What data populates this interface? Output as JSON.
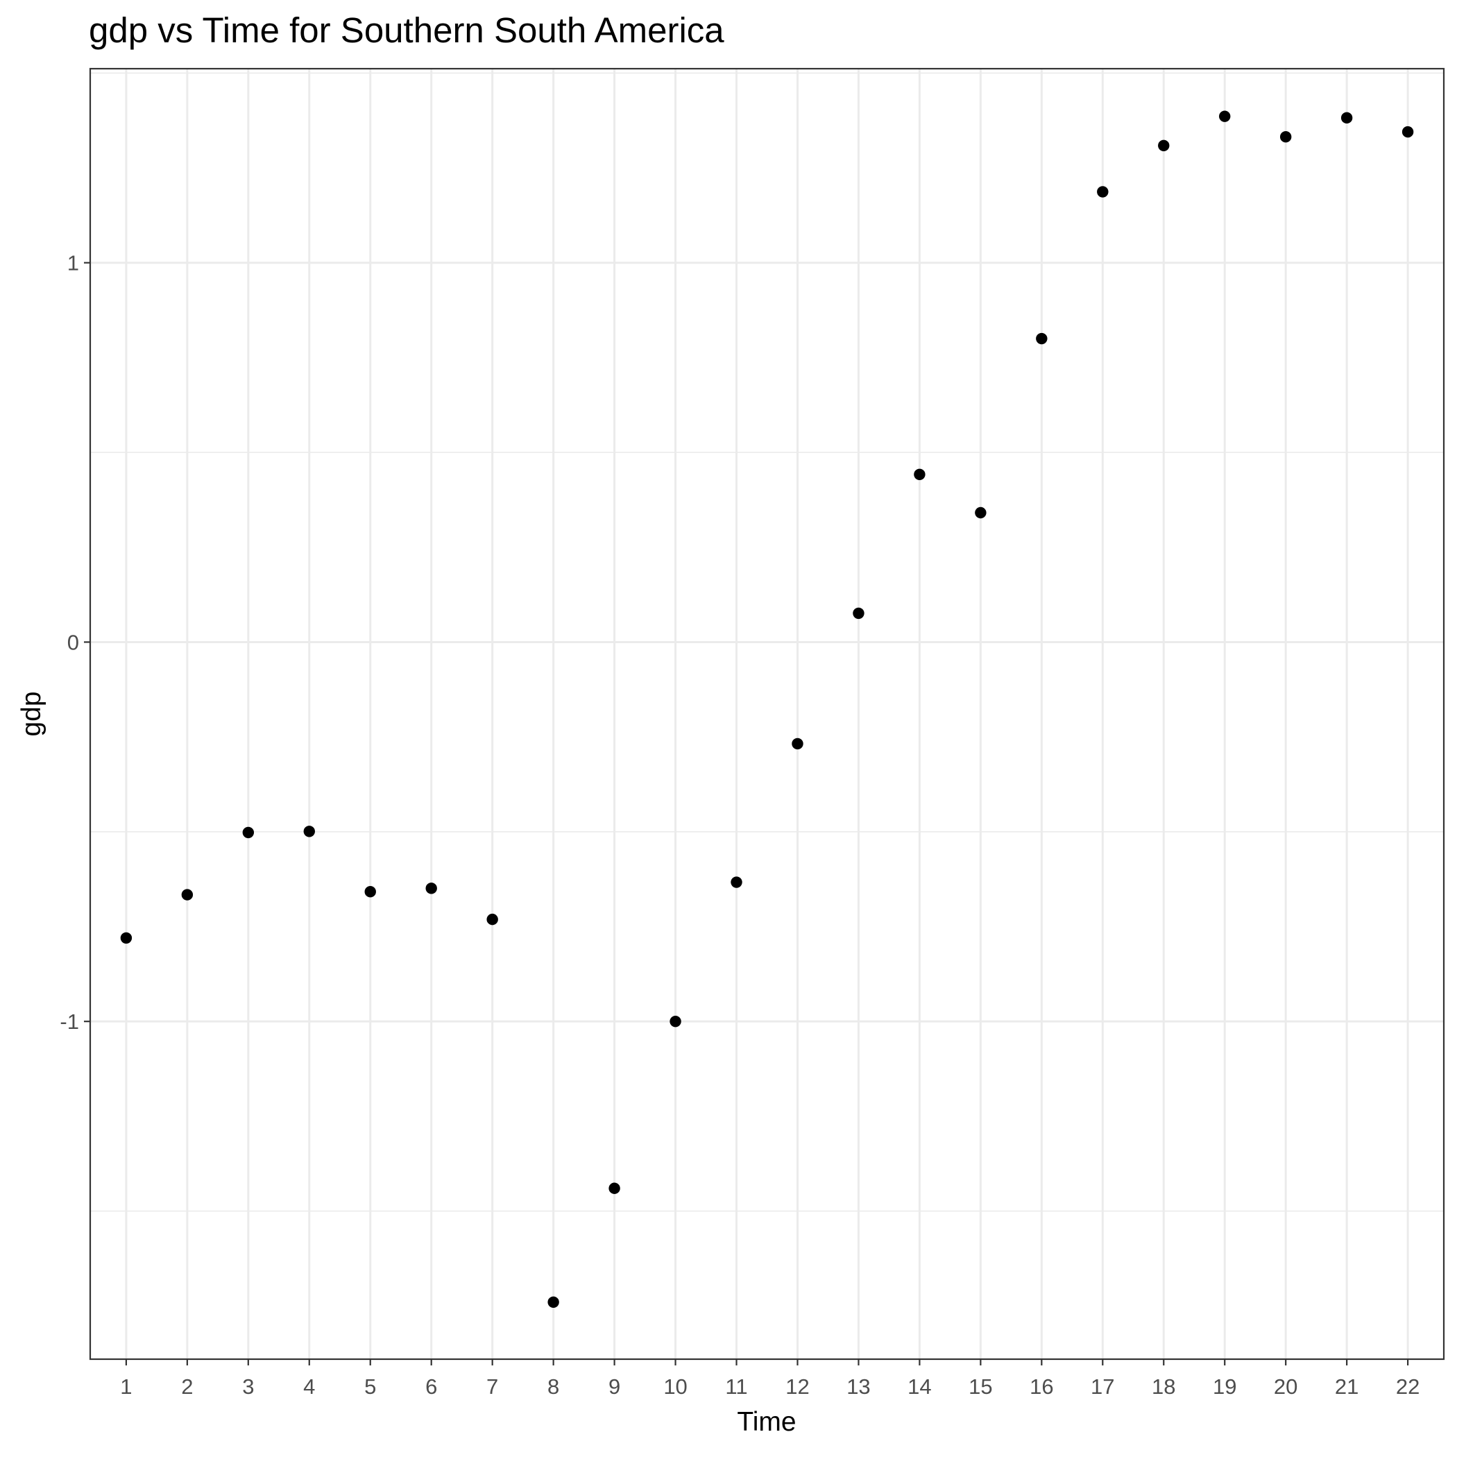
{
  "chart_data": {
    "type": "scatter",
    "title": "gdp  vs Time for Southern South America",
    "xlabel": "Time",
    "ylabel": "gdp",
    "x": [
      1,
      2,
      3,
      4,
      5,
      6,
      7,
      8,
      9,
      10,
      11,
      12,
      13,
      14,
      15,
      16,
      17,
      18,
      19,
      20,
      21,
      22
    ],
    "y": [
      -0.78,
      -0.666,
      -0.502,
      -0.499,
      -0.658,
      -0.649,
      -0.731,
      -1.74,
      -1.44,
      -1.0,
      -0.633,
      -0.268,
      0.076,
      0.442,
      0.341,
      0.8,
      1.187,
      1.309,
      1.386,
      1.332,
      1.382,
      1.345
    ],
    "x_ticks": [
      "1",
      "2",
      "3",
      "4",
      "5",
      "6",
      "7",
      "8",
      "9",
      "10",
      "11",
      "12",
      "13",
      "14",
      "15",
      "16",
      "17",
      "18",
      "19",
      "20",
      "21",
      "22"
    ],
    "y_ticks": [
      {
        "value": -1,
        "label": "-1"
      },
      {
        "value": 0,
        "label": "0"
      },
      {
        "value": 1,
        "label": "1"
      }
    ],
    "xlim": [
      0.41,
      22.59
    ],
    "ylim": [
      -1.8904,
      1.5116
    ],
    "grid": true,
    "point_color": "#000000",
    "grid_color": "#ebebeb",
    "panel_border_color": "#333333"
  }
}
